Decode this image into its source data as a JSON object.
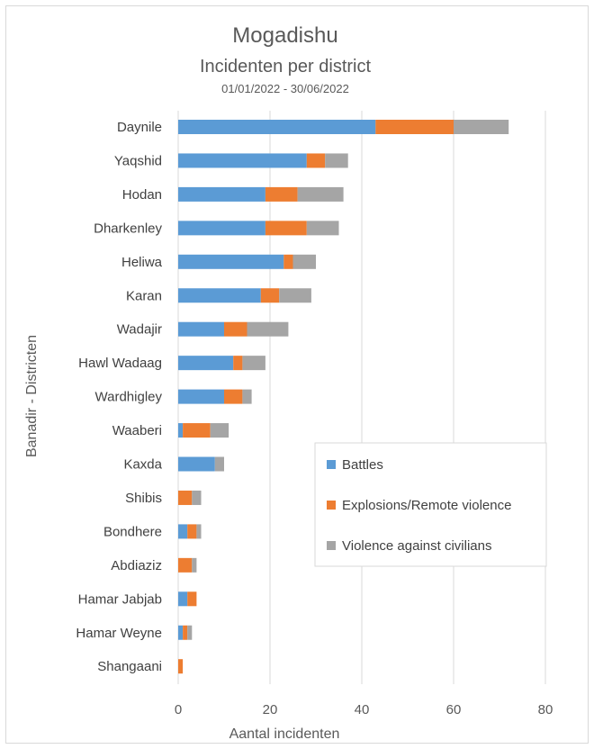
{
  "chart_data": {
    "type": "bar",
    "orientation": "horizontal",
    "stacked": true,
    "title": "Mogadishu",
    "subtitle": "Incidenten per district",
    "date_range": "01/01/2022 - 30/06/2022",
    "xlabel": "Aantal incidenten",
    "ylabel": "Banadir - Districten",
    "xlim": [
      0,
      80
    ],
    "xticks": [
      "0",
      "20",
      "40",
      "60",
      "80"
    ],
    "grid": "vertical",
    "legend_position": "right",
    "categories": [
      "Daynile",
      "Yaqshid",
      "Hodan",
      "Dharkenley",
      "Heliwa",
      "Karan",
      "Wadajir",
      "Hawl Wadaag",
      "Wardhigley",
      "Waaberi",
      "Kaxda",
      "Shibis",
      "Bondhere",
      "Abdiaziz",
      "Hamar Jabjab",
      "Hamar Weyne",
      "Shangaani"
    ],
    "series": [
      {
        "name": "Battles",
        "color": "#5b9bd5",
        "values": [
          43,
          28,
          19,
          19,
          23,
          18,
          10,
          12,
          10,
          1,
          8,
          0,
          2,
          0,
          2,
          1,
          0
        ]
      },
      {
        "name": "Explosions/Remote violence",
        "color": "#ed7d31",
        "values": [
          17,
          4,
          7,
          9,
          2,
          4,
          5,
          2,
          4,
          6,
          0,
          3,
          2,
          3,
          2,
          1,
          1
        ]
      },
      {
        "name": "Violence against civilians",
        "color": "#a5a5a5",
        "values": [
          12,
          5,
          10,
          7,
          5,
          7,
          9,
          5,
          2,
          4,
          2,
          2,
          1,
          1,
          0,
          1,
          0
        ]
      }
    ]
  }
}
